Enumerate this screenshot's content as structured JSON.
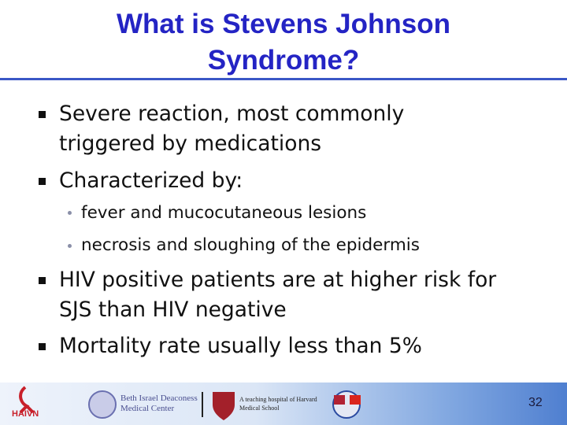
{
  "header": {
    "title": "What is Stevens Johnson Syndrome?"
  },
  "bullets": [
    {
      "text": "Severe reaction, most commonly triggered by medications"
    },
    {
      "text": "Characterized by:",
      "sub": [
        "fever and mucocutaneous lesions",
        "necrosis and sloughing of the epidermis"
      ]
    },
    {
      "text": "HIV positive patients are at higher risk for SJS than HIV negative"
    },
    {
      "text": "Mortality rate usually less than 5%"
    }
  ],
  "footer": {
    "logo_haivn": "HAIVN",
    "logo_bidmc": "Beth Israel Deaconess Medical Center",
    "logo_harvard": "A teaching hospital of Harvard Medical School",
    "page_number": "32"
  }
}
